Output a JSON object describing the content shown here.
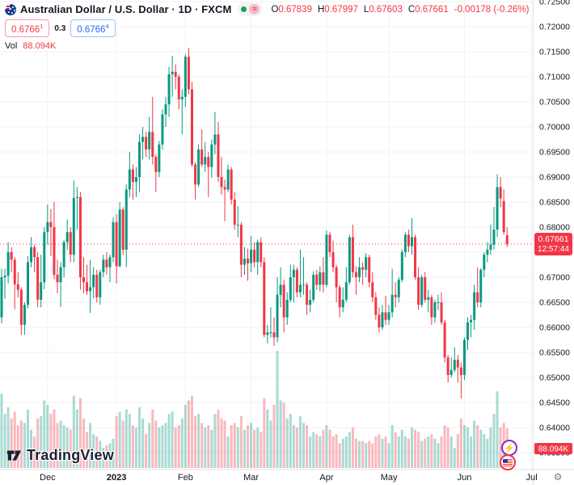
{
  "header": {
    "symbol_title": "Australian Dollar / U.S. Dollar · 1D · FXCM",
    "ohlc": {
      "o_label": "O",
      "o": "0.67839",
      "h_label": "H",
      "h": "0.67997",
      "l_label": "L",
      "l": "0.67603",
      "c_label": "C",
      "c": "0.67661",
      "change": "-0.00178 (-0.26%)"
    },
    "quote": {
      "bid": "0.6766",
      "bid_sup": "1",
      "spread": "0.3",
      "ask": "0.6766",
      "ask_sup": "4"
    },
    "vol_label": "Vol",
    "vol_value": "88.094K"
  },
  "watermark": {
    "logo_text": "TradingView"
  },
  "badges": {
    "lightning": "⚡",
    "gear": "⚙"
  },
  "price_axis": {
    "last_price_label": "0.67661",
    "countdown": "12:57:44",
    "volume_label": "88.094K"
  },
  "colors": {
    "up": "#089981",
    "down": "#F23645",
    "up_volume": "rgba(8,153,129,0.35)",
    "down_volume": "rgba(242,54,69,0.35)",
    "grid": "#f0f2f5",
    "axis_text": "#131722",
    "axis_border": "#e0e3eb",
    "accent_red": "#F23645",
    "accent_blue": "#2962FF",
    "background": "#ffffff"
  },
  "chart_data": {
    "type": "candlestick+volume",
    "title": "Australian Dollar / U.S. Dollar",
    "symbol": "AUD/USD",
    "interval": "1D",
    "exchange": "FXCM",
    "current_price": 0.67661,
    "current_volume_label": "88.094K",
    "countdown": "12:57:44",
    "price_scale": {
      "ticks": [
        0.725,
        0.72,
        0.715,
        0.71,
        0.705,
        0.7,
        0.695,
        0.69,
        0.685,
        0.68,
        0.675,
        0.67,
        0.665,
        0.66,
        0.655,
        0.65,
        0.645,
        0.64,
        0.635
      ],
      "visible_min": 0.6318,
      "visible_max": 0.7253
    },
    "time_scale": {
      "ticks": [
        {
          "label": "Dec",
          "index": 14
        },
        {
          "label": "2023",
          "index": 35,
          "emphasis": true
        },
        {
          "label": "Feb",
          "index": 56
        },
        {
          "label": "Mar",
          "index": 76
        },
        {
          "label": "Apr",
          "index": 99
        },
        {
          "label": "May",
          "index": 118
        },
        {
          "label": "Jun",
          "index": 141
        },
        {
          "label": "Jul",
          "index": 161.5
        }
      ]
    },
    "candles_format": [
      "date",
      "open",
      "high",
      "low",
      "close",
      "volume_k"
    ],
    "candles": [
      [
        "2022-11-11",
        0.662,
        0.6717,
        0.6608,
        0.67,
        165
      ],
      [
        "2022-11-14",
        0.67,
        0.6717,
        0.6657,
        0.6703,
        120
      ],
      [
        "2022-11-15",
        0.6703,
        0.677,
        0.6688,
        0.675,
        135
      ],
      [
        "2022-11-16",
        0.675,
        0.676,
        0.671,
        0.6735,
        110
      ],
      [
        "2022-11-17",
        0.6735,
        0.674,
        0.6636,
        0.6686,
        125
      ],
      [
        "2022-11-18",
        0.6686,
        0.671,
        0.666,
        0.6675,
        95
      ],
      [
        "2022-11-21",
        0.6675,
        0.668,
        0.6585,
        0.6605,
        105
      ],
      [
        "2022-11-22",
        0.6605,
        0.665,
        0.6585,
        0.6645,
        100
      ],
      [
        "2022-11-23",
        0.6645,
        0.6742,
        0.6638,
        0.673,
        130
      ],
      [
        "2022-11-24",
        0.673,
        0.678,
        0.672,
        0.676,
        85
      ],
      [
        "2022-11-25",
        0.676,
        0.6765,
        0.671,
        0.674,
        70
      ],
      [
        "2022-11-28",
        0.674,
        0.675,
        0.664,
        0.6655,
        110
      ],
      [
        "2022-11-29",
        0.6655,
        0.6745,
        0.664,
        0.669,
        115
      ],
      [
        "2022-11-30",
        0.669,
        0.68,
        0.6676,
        0.679,
        150
      ],
      [
        "2022-12-01",
        0.679,
        0.6845,
        0.6765,
        0.681,
        140
      ],
      [
        "2022-12-02",
        0.681,
        0.6836,
        0.6742,
        0.68,
        120
      ],
      [
        "2022-12-05",
        0.68,
        0.6851,
        0.6696,
        0.6705,
        130
      ],
      [
        "2022-12-06",
        0.6705,
        0.6735,
        0.6668,
        0.669,
        100
      ],
      [
        "2022-12-07",
        0.669,
        0.673,
        0.6641,
        0.672,
        105
      ],
      [
        "2022-12-08",
        0.672,
        0.6775,
        0.67,
        0.677,
        95
      ],
      [
        "2022-12-09",
        0.677,
        0.6815,
        0.6755,
        0.679,
        90
      ],
      [
        "2022-12-12",
        0.679,
        0.68,
        0.673,
        0.6745,
        85
      ],
      [
        "2022-12-13",
        0.6745,
        0.6893,
        0.673,
        0.6858,
        160
      ],
      [
        "2022-12-14",
        0.6858,
        0.688,
        0.6795,
        0.686,
        130
      ],
      [
        "2022-12-15",
        0.686,
        0.687,
        0.6675,
        0.67,
        155
      ],
      [
        "2022-12-16",
        0.67,
        0.674,
        0.6668,
        0.669,
        110
      ],
      [
        "2022-12-19",
        0.669,
        0.6725,
        0.6665,
        0.6672,
        80
      ],
      [
        "2022-12-20",
        0.6672,
        0.6735,
        0.6629,
        0.668,
        100
      ],
      [
        "2022-12-21",
        0.668,
        0.672,
        0.6658,
        0.6705,
        75
      ],
      [
        "2022-12-22",
        0.6705,
        0.6715,
        0.665,
        0.666,
        70
      ],
      [
        "2022-12-23",
        0.666,
        0.6715,
        0.6645,
        0.671,
        60
      ],
      [
        "2022-12-27",
        0.671,
        0.6745,
        0.67,
        0.6735,
        45
      ],
      [
        "2022-12-28",
        0.6735,
        0.675,
        0.6705,
        0.672,
        50
      ],
      [
        "2022-12-29",
        0.672,
        0.6745,
        0.669,
        0.674,
        55
      ],
      [
        "2022-12-30",
        0.674,
        0.682,
        0.673,
        0.681,
        65
      ],
      [
        "2023-01-03",
        0.681,
        0.6826,
        0.6688,
        0.6722,
        115
      ],
      [
        "2023-01-04",
        0.6722,
        0.685,
        0.672,
        0.6835,
        125
      ],
      [
        "2023-01-05",
        0.6835,
        0.684,
        0.6745,
        0.6755,
        105
      ],
      [
        "2023-01-06",
        0.6755,
        0.6885,
        0.672,
        0.6875,
        130
      ],
      [
        "2023-01-09",
        0.6875,
        0.695,
        0.686,
        0.6915,
        120
      ],
      [
        "2023-01-10",
        0.6915,
        0.6925,
        0.6855,
        0.689,
        95
      ],
      [
        "2023-01-11",
        0.689,
        0.692,
        0.686,
        0.69,
        90
      ],
      [
        "2023-01-12",
        0.69,
        0.6985,
        0.687,
        0.697,
        135
      ],
      [
        "2023-01-13",
        0.697,
        0.7,
        0.6935,
        0.698,
        110
      ],
      [
        "2023-01-16",
        0.698,
        0.699,
        0.694,
        0.6955,
        75
      ],
      [
        "2023-01-17",
        0.6955,
        0.702,
        0.6935,
        0.699,
        100
      ],
      [
        "2023-01-18",
        0.699,
        0.706,
        0.6925,
        0.694,
        130
      ],
      [
        "2023-01-19",
        0.694,
        0.6945,
        0.687,
        0.691,
        105
      ],
      [
        "2023-01-20",
        0.691,
        0.6972,
        0.69,
        0.6965,
        90
      ],
      [
        "2023-01-23",
        0.6965,
        0.7035,
        0.6955,
        0.7025,
        95
      ],
      [
        "2023-01-24",
        0.7025,
        0.706,
        0.7,
        0.7045,
        100
      ],
      [
        "2023-01-25",
        0.7045,
        0.712,
        0.702,
        0.7105,
        120
      ],
      [
        "2023-01-26",
        0.7105,
        0.7142,
        0.706,
        0.711,
        125
      ],
      [
        "2023-01-27",
        0.711,
        0.7125,
        0.7075,
        0.71,
        90
      ],
      [
        "2023-01-30",
        0.71,
        0.7105,
        0.7035,
        0.7055,
        95
      ],
      [
        "2023-01-31",
        0.7055,
        0.7075,
        0.6985,
        0.706,
        110
      ],
      [
        "2023-02-01",
        0.706,
        0.7145,
        0.704,
        0.714,
        140
      ],
      [
        "2023-02-02",
        0.714,
        0.7158,
        0.7065,
        0.7075,
        150
      ],
      [
        "2023-02-03",
        0.7075,
        0.709,
        0.692,
        0.6925,
        160
      ],
      [
        "2023-02-06",
        0.6925,
        0.693,
        0.6855,
        0.6885,
        115
      ],
      [
        "2023-02-07",
        0.6885,
        0.6965,
        0.688,
        0.6955,
        120
      ],
      [
        "2023-02-08",
        0.6955,
        0.6995,
        0.692,
        0.6925,
        100
      ],
      [
        "2023-02-09",
        0.6925,
        0.697,
        0.691,
        0.694,
        90
      ],
      [
        "2023-02-10",
        0.694,
        0.695,
        0.686,
        0.692,
        95
      ],
      [
        "2023-02-13",
        0.692,
        0.6975,
        0.6898,
        0.6965,
        85
      ],
      [
        "2023-02-14",
        0.6965,
        0.703,
        0.6945,
        0.6985,
        120
      ],
      [
        "2023-02-15",
        0.6985,
        0.701,
        0.689,
        0.69,
        130
      ],
      [
        "2023-02-16",
        0.69,
        0.694,
        0.6865,
        0.688,
        110
      ],
      [
        "2023-02-17",
        0.688,
        0.6895,
        0.6812,
        0.6875,
        105
      ],
      [
        "2023-02-20",
        0.6875,
        0.6925,
        0.687,
        0.6915,
        70
      ],
      [
        "2023-02-21",
        0.6915,
        0.692,
        0.6845,
        0.6855,
        95
      ],
      [
        "2023-02-22",
        0.6855,
        0.687,
        0.6795,
        0.6805,
        100
      ],
      [
        "2023-02-23",
        0.6805,
        0.6842,
        0.678,
        0.6805,
        90
      ],
      [
        "2023-02-24",
        0.6805,
        0.681,
        0.67,
        0.6725,
        115
      ],
      [
        "2023-02-27",
        0.6725,
        0.676,
        0.6705,
        0.6737,
        85
      ],
      [
        "2023-02-28",
        0.6737,
        0.6757,
        0.6693,
        0.6728,
        95
      ],
      [
        "2023-03-01",
        0.6728,
        0.6783,
        0.671,
        0.6755,
        100
      ],
      [
        "2023-03-02",
        0.6755,
        0.677,
        0.672,
        0.673,
        85
      ],
      [
        "2023-03-03",
        0.673,
        0.6775,
        0.6705,
        0.677,
        90
      ],
      [
        "2023-03-06",
        0.677,
        0.678,
        0.672,
        0.673,
        80
      ],
      [
        "2023-03-07",
        0.673,
        0.674,
        0.658,
        0.6585,
        155
      ],
      [
        "2023-03-08",
        0.6585,
        0.6605,
        0.6568,
        0.659,
        130
      ],
      [
        "2023-03-09",
        0.659,
        0.664,
        0.658,
        0.659,
        105
      ],
      [
        "2023-03-10",
        0.659,
        0.662,
        0.6563,
        0.658,
        140
      ],
      [
        "2023-03-13",
        0.658,
        0.67,
        0.657,
        0.6665,
        260
      ],
      [
        "2023-03-14",
        0.6665,
        0.672,
        0.664,
        0.6685,
        150
      ],
      [
        "2023-03-15",
        0.6685,
        0.6695,
        0.659,
        0.662,
        145
      ],
      [
        "2023-03-16",
        0.662,
        0.667,
        0.6605,
        0.6655,
        110
      ],
      [
        "2023-03-17",
        0.6655,
        0.6725,
        0.665,
        0.67,
        120
      ],
      [
        "2023-03-20",
        0.67,
        0.6725,
        0.665,
        0.6715,
        95
      ],
      [
        "2023-03-21",
        0.6715,
        0.672,
        0.666,
        0.667,
        90
      ],
      [
        "2023-03-22",
        0.667,
        0.6755,
        0.666,
        0.6685,
        115
      ],
      [
        "2023-03-23",
        0.6685,
        0.674,
        0.6665,
        0.6685,
        100
      ],
      [
        "2023-03-24",
        0.6685,
        0.669,
        0.6625,
        0.6645,
        95
      ],
      [
        "2023-03-27",
        0.6645,
        0.6675,
        0.663,
        0.6655,
        70
      ],
      [
        "2023-03-28",
        0.6655,
        0.6712,
        0.665,
        0.6705,
        80
      ],
      [
        "2023-03-29",
        0.6705,
        0.6715,
        0.6675,
        0.6685,
        75
      ],
      [
        "2023-03-30",
        0.6685,
        0.6722,
        0.6672,
        0.671,
        70
      ],
      [
        "2023-03-31",
        0.671,
        0.674,
        0.667,
        0.6685,
        85
      ],
      [
        "2023-04-03",
        0.6685,
        0.6793,
        0.668,
        0.6785,
        95
      ],
      [
        "2023-04-04",
        0.6785,
        0.679,
        0.674,
        0.675,
        85
      ],
      [
        "2023-04-05",
        0.675,
        0.6773,
        0.671,
        0.672,
        70
      ],
      [
        "2023-04-06",
        0.672,
        0.6725,
        0.665,
        0.668,
        75
      ],
      [
        "2023-04-10",
        0.668,
        0.6685,
        0.662,
        0.664,
        55
      ],
      [
        "2023-04-11",
        0.664,
        0.668,
        0.663,
        0.6655,
        65
      ],
      [
        "2023-04-12",
        0.6655,
        0.672,
        0.665,
        0.669,
        70
      ],
      [
        "2023-04-13",
        0.669,
        0.6785,
        0.6685,
        0.678,
        80
      ],
      [
        "2023-04-14",
        0.678,
        0.6805,
        0.67,
        0.671,
        90
      ],
      [
        "2023-04-17",
        0.671,
        0.6722,
        0.6665,
        0.67,
        65
      ],
      [
        "2023-04-18",
        0.67,
        0.674,
        0.669,
        0.672,
        60
      ],
      [
        "2023-04-19",
        0.672,
        0.673,
        0.6685,
        0.6715,
        60
      ],
      [
        "2023-04-20",
        0.6715,
        0.6748,
        0.67,
        0.674,
        55
      ],
      [
        "2023-04-21",
        0.674,
        0.6745,
        0.668,
        0.669,
        60
      ],
      [
        "2023-04-24",
        0.669,
        0.671,
        0.665,
        0.666,
        55
      ],
      [
        "2023-04-25",
        0.666,
        0.667,
        0.6615,
        0.6625,
        70
      ],
      [
        "2023-04-26",
        0.6625,
        0.664,
        0.659,
        0.66,
        75
      ],
      [
        "2023-04-27",
        0.66,
        0.6645,
        0.6595,
        0.663,
        65
      ],
      [
        "2023-04-28",
        0.663,
        0.6663,
        0.6605,
        0.6615,
        70
      ],
      [
        "2023-05-01",
        0.6615,
        0.6645,
        0.6605,
        0.663,
        55
      ],
      [
        "2023-05-02",
        0.663,
        0.6717,
        0.662,
        0.6665,
        95
      ],
      [
        "2023-05-03",
        0.6665,
        0.669,
        0.664,
        0.666,
        80
      ],
      [
        "2023-05-04",
        0.666,
        0.67,
        0.665,
        0.6695,
        70
      ],
      [
        "2023-05-05",
        0.6695,
        0.6755,
        0.669,
        0.675,
        85
      ],
      [
        "2023-05-08",
        0.675,
        0.679,
        0.674,
        0.6785,
        70
      ],
      [
        "2023-05-09",
        0.6785,
        0.6795,
        0.675,
        0.6762,
        65
      ],
      [
        "2023-05-10",
        0.6762,
        0.6818,
        0.6745,
        0.678,
        90
      ],
      [
        "2023-05-11",
        0.678,
        0.6785,
        0.6695,
        0.67,
        85
      ],
      [
        "2023-05-12",
        0.67,
        0.672,
        0.6635,
        0.6645,
        80
      ],
      [
        "2023-05-15",
        0.6645,
        0.6705,
        0.664,
        0.67,
        60
      ],
      [
        "2023-05-16",
        0.67,
        0.671,
        0.665,
        0.6655,
        65
      ],
      [
        "2023-05-17",
        0.6655,
        0.6675,
        0.663,
        0.666,
        70
      ],
      [
        "2023-05-18",
        0.666,
        0.6665,
        0.6605,
        0.662,
        75
      ],
      [
        "2023-05-19",
        0.662,
        0.6655,
        0.661,
        0.665,
        65
      ],
      [
        "2023-05-22",
        0.665,
        0.6665,
        0.6635,
        0.665,
        55
      ],
      [
        "2023-05-23",
        0.665,
        0.667,
        0.6605,
        0.661,
        70
      ],
      [
        "2023-05-24",
        0.661,
        0.6615,
        0.653,
        0.654,
        95
      ],
      [
        "2023-05-25",
        0.654,
        0.6545,
        0.649,
        0.6505,
        90
      ],
      [
        "2023-05-26",
        0.6505,
        0.654,
        0.65,
        0.6515,
        70
      ],
      [
        "2023-05-29",
        0.6515,
        0.656,
        0.651,
        0.6535,
        45
      ],
      [
        "2023-05-30",
        0.6535,
        0.6545,
        0.649,
        0.652,
        75
      ],
      [
        "2023-05-31",
        0.652,
        0.653,
        0.6458,
        0.6505,
        110
      ],
      [
        "2023-06-01",
        0.6505,
        0.658,
        0.6495,
        0.6575,
        95
      ],
      [
        "2023-06-02",
        0.6575,
        0.662,
        0.6555,
        0.661,
        90
      ],
      [
        "2023-06-05",
        0.661,
        0.6625,
        0.658,
        0.6615,
        70
      ],
      [
        "2023-06-06",
        0.6615,
        0.6685,
        0.6595,
        0.667,
        105
      ],
      [
        "2023-06-07",
        0.667,
        0.672,
        0.664,
        0.665,
        95
      ],
      [
        "2023-06-08",
        0.665,
        0.6718,
        0.664,
        0.6715,
        85
      ],
      [
        "2023-06-09",
        0.6715,
        0.675,
        0.67,
        0.6745,
        75
      ],
      [
        "2023-06-12",
        0.6745,
        0.677,
        0.673,
        0.6755,
        65
      ],
      [
        "2023-06-13",
        0.6755,
        0.6805,
        0.6745,
        0.6765,
        90
      ],
      [
        "2023-06-14",
        0.6765,
        0.684,
        0.6755,
        0.6795,
        120
      ],
      [
        "2023-06-15",
        0.6795,
        0.6905,
        0.678,
        0.688,
        170
      ],
      [
        "2023-06-16",
        0.688,
        0.69,
        0.684,
        0.6857,
        90
      ],
      [
        "2023-06-19",
        0.6852,
        0.6875,
        0.6785,
        0.679,
        100
      ],
      [
        "2023-06-20",
        0.67839,
        0.67997,
        0.67603,
        0.67661,
        88.094
      ]
    ]
  }
}
